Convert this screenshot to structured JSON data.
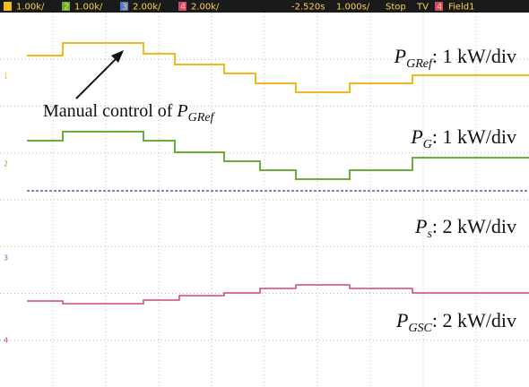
{
  "status_bar": [
    {
      "ch": "1",
      "text": "1.00k/"
    },
    {
      "ch": "2",
      "text": "1.00k/"
    },
    {
      "ch": "3",
      "text": "2.00k/"
    },
    {
      "ch": "4",
      "text": "2.00k/"
    }
  ],
  "timebase": {
    "delay": "-2.520s",
    "scale": "1.000s/",
    "state": "Stop",
    "trigger": "TV",
    "trigger_ch": "4",
    "mode": "Field1"
  },
  "markers": [
    "1",
    "2",
    "3",
    "4"
  ],
  "labels": [
    {
      "symbol": "P",
      "sub": "GRef",
      "rest": ": 1 kW/div"
    },
    {
      "symbol": "P",
      "sub": "G",
      "rest": ": 1 kW/div"
    },
    {
      "symbol": "P",
      "sub": "s",
      "rest": ": 2 kW/div"
    },
    {
      "symbol": "P",
      "sub": "GSC",
      "rest": ": 2 kW/div"
    }
  ],
  "annotation": {
    "text": "Manual control of ",
    "symbol": "P",
    "sub": "GRef"
  }
}
